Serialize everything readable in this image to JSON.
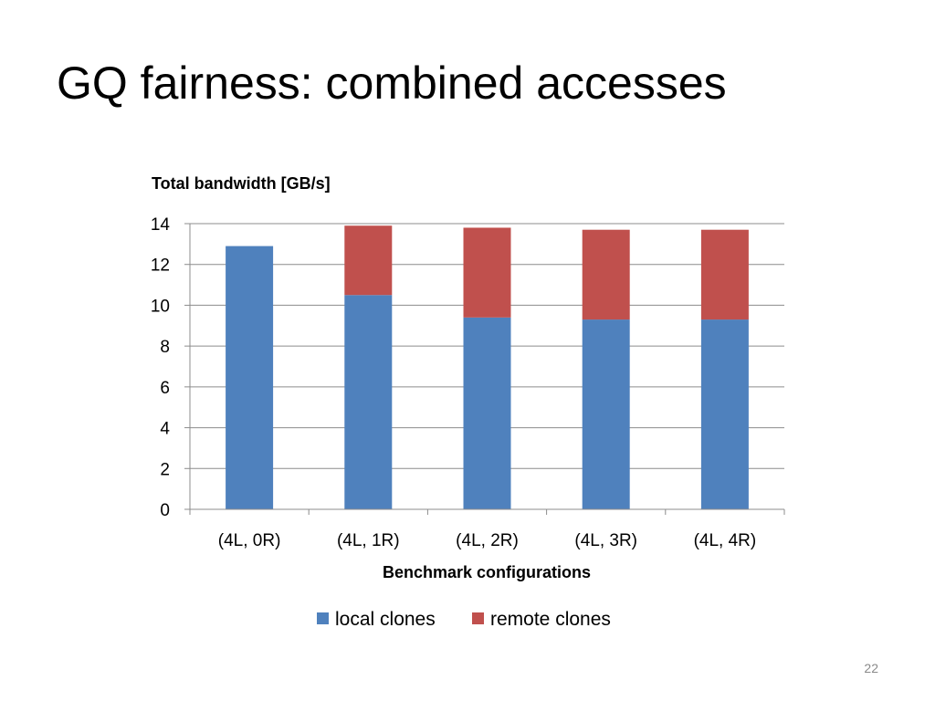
{
  "slide": {
    "title": "GQ fairness: combined accesses",
    "page_number": "22"
  },
  "chart_data": {
    "type": "bar",
    "stacked": true,
    "title": "",
    "ylabel": "Total bandwidth [GB/s]",
    "xlabel": "Benchmark configurations",
    "categories": [
      "(4L, 0R)",
      "(4L, 1R)",
      "(4L, 2R)",
      "(4L, 3R)",
      "(4L, 4R)"
    ],
    "series": [
      {
        "name": "local clones",
        "color": "#4F81BD",
        "values": [
          12.9,
          10.5,
          9.4,
          9.3,
          9.3
        ]
      },
      {
        "name": "remote clones",
        "color": "#C0504D",
        "values": [
          0,
          3.4,
          4.4,
          4.4,
          4.4
        ]
      }
    ],
    "ylim": [
      0,
      14
    ],
    "yticks": [
      0,
      2,
      4,
      6,
      8,
      10,
      12,
      14
    ],
    "grid": true,
    "legend_position": "bottom"
  }
}
